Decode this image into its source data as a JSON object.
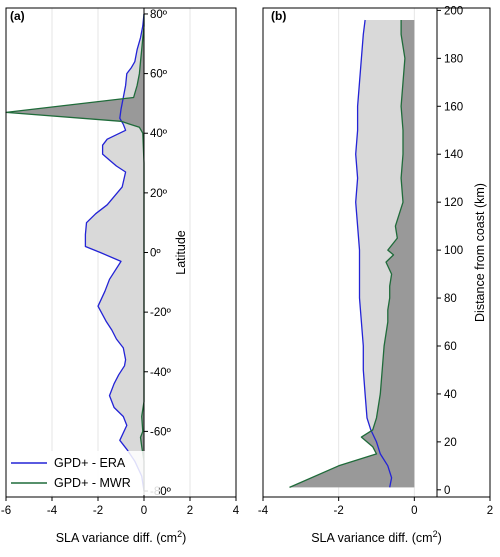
{
  "chart_data": [
    {
      "type": "area",
      "panel_label": "(a)",
      "xlabel": "SLA variance diff. (cm",
      "xlabel_sup": "2",
      "xlabel_end": ")",
      "ylabel": "Latitude",
      "xlim": [
        -6,
        4
      ],
      "ylim": [
        -82,
        82
      ],
      "x_ticks": [
        -6,
        -4,
        -2,
        0,
        2,
        4
      ],
      "x_tick_labels": [
        "-6",
        "-4",
        "-2",
        "0",
        "2",
        "4"
      ],
      "y_ticks": [
        -80,
        -60,
        -40,
        -20,
        0,
        20,
        40,
        60,
        80
      ],
      "y_tick_labels": [
        "-80º",
        "-60º",
        "-40º",
        "-20º",
        "0º",
        "20º",
        "40º",
        "60º",
        "80º"
      ],
      "grid": "vertical",
      "legend_position": "bottom-left",
      "series": [
        {
          "name": "GPD+ - ERA",
          "color": "#2323d6",
          "fill": "#d9d9d9",
          "points": [
            [
              0,
              80
            ],
            [
              -0.05,
              76
            ],
            [
              -0.15,
              72
            ],
            [
              -0.3,
              68
            ],
            [
              -0.4,
              64
            ],
            [
              -0.55,
              62
            ],
            [
              -0.75,
              60
            ],
            [
              -0.8,
              56
            ],
            [
              -0.9,
              52
            ],
            [
              -1.0,
              48
            ],
            [
              -1.05,
              45
            ],
            [
              -0.9,
              43
            ],
            [
              -0.8,
              41
            ],
            [
              -1.6,
              38
            ],
            [
              -1.8,
              36
            ],
            [
              -1.8,
              33
            ],
            [
              -1.5,
              31
            ],
            [
              -1.2,
              29
            ],
            [
              -0.8,
              27
            ],
            [
              -0.95,
              22
            ],
            [
              -1.6,
              16
            ],
            [
              -2.1,
              13
            ],
            [
              -2.5,
              10
            ],
            [
              -2.55,
              6
            ],
            [
              -2.55,
              2
            ],
            [
              -1.9,
              0
            ],
            [
              -1.0,
              -3
            ],
            [
              -1.5,
              -9
            ],
            [
              -1.7,
              -13
            ],
            [
              -2.0,
              -18
            ],
            [
              -1.65,
              -23
            ],
            [
              -1.4,
              -26
            ],
            [
              -1.2,
              -29
            ],
            [
              -0.9,
              -32
            ],
            [
              -0.8,
              -36
            ],
            [
              -0.85,
              -38
            ],
            [
              -1.1,
              -41
            ],
            [
              -1.3,
              -44
            ],
            [
              -1.5,
              -48
            ],
            [
              -1.3,
              -52
            ],
            [
              -0.9,
              -55
            ],
            [
              -0.75,
              -58
            ],
            [
              -1.05,
              -63
            ],
            [
              -0.75,
              -66
            ],
            [
              -0.4,
              -70
            ],
            [
              -0.1,
              -75
            ],
            [
              0,
              -80
            ]
          ]
        },
        {
          "name": "GPD+ - MWR",
          "color": "#1f6b3a",
          "fill": "#999999",
          "points": [
            [
              0,
              80
            ],
            [
              0,
              76
            ],
            [
              -0.05,
              72
            ],
            [
              -0.1,
              68
            ],
            [
              -0.15,
              64
            ],
            [
              -0.2,
              60
            ],
            [
              -0.3,
              56
            ],
            [
              -0.45,
              52
            ],
            [
              -6.0,
              47
            ],
            [
              -1.0,
              44
            ],
            [
              -0.2,
              42
            ],
            [
              -0.05,
              40
            ],
            [
              0,
              30
            ],
            [
              0,
              20
            ],
            [
              0,
              10
            ],
            [
              0,
              0
            ],
            [
              0,
              -10
            ],
            [
              0,
              -20
            ],
            [
              0,
              -30
            ],
            [
              0,
              -40
            ],
            [
              0,
              -50
            ],
            [
              -0.1,
              -55
            ],
            [
              -0.05,
              -60
            ],
            [
              -0.15,
              -62
            ],
            [
              -0.1,
              -65
            ],
            [
              0,
              -70
            ],
            [
              0,
              -75
            ],
            [
              0,
              -80
            ]
          ]
        }
      ]
    },
    {
      "type": "area",
      "panel_label": "(b)",
      "xlabel": "SLA variance diff. (cm",
      "xlabel_sup": "2",
      "xlabel_end": ")",
      "ylabel": "Distance from coast (km)",
      "xlim": [
        -4,
        2
      ],
      "ylim": [
        -3,
        201
      ],
      "x_ticks": [
        -4,
        -2,
        0,
        2
      ],
      "x_tick_labels": [
        "-4",
        "-2",
        "0",
        "2"
      ],
      "y_ticks": [
        0,
        20,
        40,
        60,
        80,
        100,
        120,
        140,
        160,
        180,
        200
      ],
      "y_tick_labels": [
        "0",
        "20",
        "40",
        "60",
        "80",
        "100",
        "120",
        "140",
        "160",
        "180",
        "200"
      ],
      "grid": "vertical",
      "series": [
        {
          "name": "GPD+ - ERA",
          "color": "#2323d6",
          "fill": "#d9d9d9",
          "points": [
            [
              -1.3,
              196
            ],
            [
              -1.35,
              190
            ],
            [
              -1.4,
              180
            ],
            [
              -1.45,
              170
            ],
            [
              -1.5,
              160
            ],
            [
              -1.5,
              150
            ],
            [
              -1.55,
              140
            ],
            [
              -1.5,
              130
            ],
            [
              -1.55,
              120
            ],
            [
              -1.5,
              110
            ],
            [
              -1.45,
              100
            ],
            [
              -1.45,
              90
            ],
            [
              -1.45,
              80
            ],
            [
              -1.4,
              70
            ],
            [
              -1.35,
              60
            ],
            [
              -1.35,
              50
            ],
            [
              -1.3,
              40
            ],
            [
              -1.25,
              30
            ],
            [
              -1.15,
              25
            ],
            [
              -1.0,
              20
            ],
            [
              -0.9,
              15
            ],
            [
              -0.7,
              10
            ],
            [
              -0.6,
              5
            ],
            [
              -0.65,
              1
            ]
          ]
        },
        {
          "name": "GPD+ - MWR",
          "color": "#1f6b3a",
          "fill": "#999999",
          "points": [
            [
              -0.35,
              196
            ],
            [
              -0.35,
              190
            ],
            [
              -0.25,
              180
            ],
            [
              -0.3,
              170
            ],
            [
              -0.35,
              160
            ],
            [
              -0.3,
              150
            ],
            [
              -0.3,
              140
            ],
            [
              -0.35,
              130
            ],
            [
              -0.3,
              120
            ],
            [
              -0.5,
              110
            ],
            [
              -0.45,
              105
            ],
            [
              -0.7,
              100
            ],
            [
              -0.55,
              98
            ],
            [
              -0.75,
              95
            ],
            [
              -0.6,
              90
            ],
            [
              -0.65,
              85
            ],
            [
              -0.65,
              80
            ],
            [
              -0.7,
              75
            ],
            [
              -0.7,
              70
            ],
            [
              -0.8,
              60
            ],
            [
              -0.85,
              50
            ],
            [
              -0.9,
              40
            ],
            [
              -1.0,
              30
            ],
            [
              -1.1,
              25
            ],
            [
              -1.4,
              22
            ],
            [
              -1.1,
              18
            ],
            [
              -1.0,
              15
            ],
            [
              -2.0,
              10
            ],
            [
              -3.3,
              1
            ]
          ]
        }
      ]
    }
  ]
}
